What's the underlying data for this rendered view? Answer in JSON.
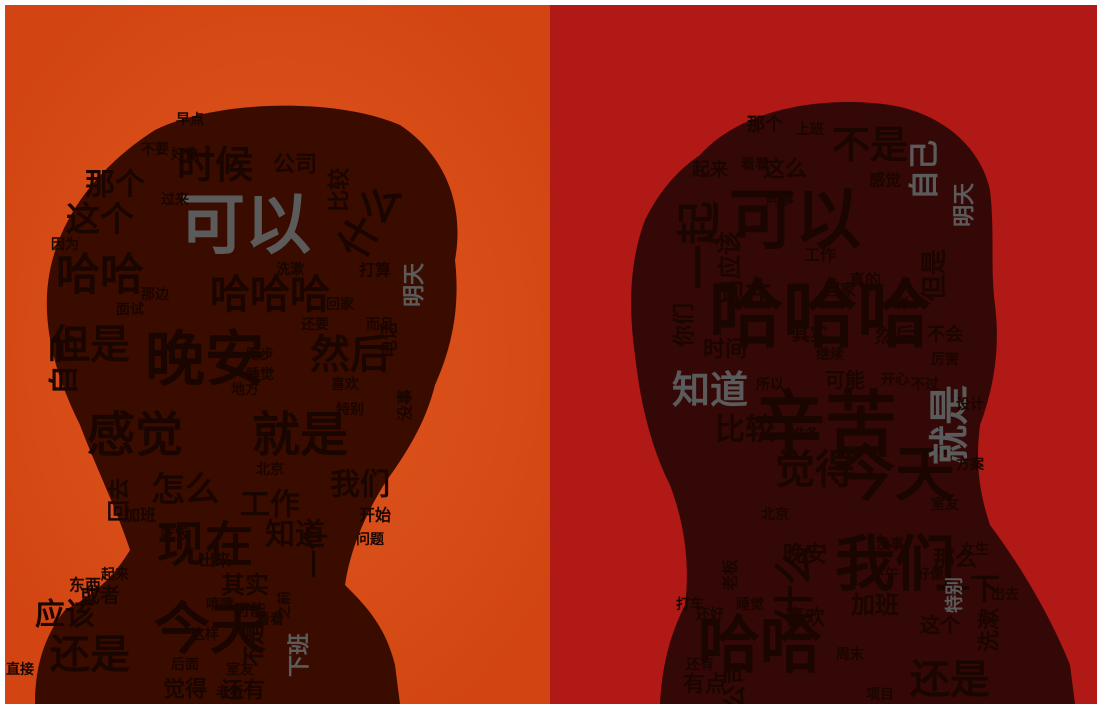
{
  "colors": {
    "left_bg": "#d64a17",
    "right_bg": "#b01915",
    "silhouette_left": "#3a0c00",
    "silhouette_right": "#340806",
    "word_dark": "#1a0500",
    "word_gray": "#5b5b5b"
  },
  "left_cloud": {
    "words": [
      {
        "text": "可以"
      },
      {
        "text": "时候"
      },
      {
        "text": "晚安"
      },
      {
        "text": "感觉"
      },
      {
        "text": "就是"
      },
      {
        "text": "现在"
      },
      {
        "text": "今天"
      },
      {
        "text": "哈哈"
      },
      {
        "text": "哈哈哈"
      },
      {
        "text": "但是"
      },
      {
        "text": "然后"
      },
      {
        "text": "这个"
      },
      {
        "text": "那个"
      },
      {
        "text": "什么"
      },
      {
        "text": "还是"
      },
      {
        "text": "应该"
      },
      {
        "text": "怎么"
      },
      {
        "text": "工作"
      },
      {
        "text": "知道"
      },
      {
        "text": "我们"
      },
      {
        "text": "一个"
      },
      {
        "text": "公司"
      },
      {
        "text": "比较"
      },
      {
        "text": "明天"
      },
      {
        "text": "自己"
      },
      {
        "text": "觉得"
      },
      {
        "text": "还有"
      },
      {
        "text": "或者"
      },
      {
        "text": "其实"
      },
      {
        "text": "不是"
      },
      {
        "text": "回去"
      },
      {
        "text": "下班"
      },
      {
        "text": "东西"
      },
      {
        "text": "出来"
      },
      {
        "text": "可能"
      },
      {
        "text": "起来"
      },
      {
        "text": "问题"
      },
      {
        "text": "吃饭"
      },
      {
        "text": "开始"
      },
      {
        "text": "没事"
      },
      {
        "text": "电话"
      },
      {
        "text": "喜欢"
      },
      {
        "text": "打算"
      },
      {
        "text": "睡觉"
      },
      {
        "text": "特别"
      },
      {
        "text": "地方"
      },
      {
        "text": "北京"
      },
      {
        "text": "老板"
      },
      {
        "text": "面试"
      },
      {
        "text": "早点"
      },
      {
        "text": "过来"
      },
      {
        "text": "加班"
      },
      {
        "text": "后面"
      },
      {
        "text": "这样"
      },
      {
        "text": "室友"
      },
      {
        "text": "看看"
      },
      {
        "text": "嘻嘻"
      },
      {
        "text": "之前"
      },
      {
        "text": "好像"
      },
      {
        "text": "洗漱"
      },
      {
        "text": "回家"
      },
      {
        "text": "而且"
      },
      {
        "text": "跑步"
      },
      {
        "text": "还要"
      },
      {
        "text": "直接"
      },
      {
        "text": "不要"
      },
      {
        "text": "因为"
      },
      {
        "text": "那边"
      }
    ]
  },
  "right_cloud": {
    "words": [
      {
        "text": "可以"
      },
      {
        "text": "哈哈哈"
      },
      {
        "text": "辛苦"
      },
      {
        "text": "今天"
      },
      {
        "text": "我们"
      },
      {
        "text": "哈哈"
      },
      {
        "text": "觉得"
      },
      {
        "text": "知道"
      },
      {
        "text": "就是"
      },
      {
        "text": "一起"
      },
      {
        "text": "不是"
      },
      {
        "text": "什么"
      },
      {
        "text": "还是"
      },
      {
        "text": "比较"
      },
      {
        "text": "自己"
      },
      {
        "text": "现在"
      },
      {
        "text": "但是"
      },
      {
        "text": "这么"
      },
      {
        "text": "时间"
      },
      {
        "text": "你们"
      },
      {
        "text": "应该"
      },
      {
        "text": "可能"
      },
      {
        "text": "然后"
      },
      {
        "text": "一下"
      },
      {
        "text": "那么"
      },
      {
        "text": "晚安"
      },
      {
        "text": "加班"
      },
      {
        "text": "公司"
      },
      {
        "text": "有点"
      },
      {
        "text": "喜欢"
      },
      {
        "text": "这个"
      },
      {
        "text": "洗漱"
      },
      {
        "text": "特别"
      },
      {
        "text": "明天"
      },
      {
        "text": "起来"
      },
      {
        "text": "那个"
      },
      {
        "text": "其实"
      },
      {
        "text": "不会"
      },
      {
        "text": "真的"
      },
      {
        "text": "工作"
      },
      {
        "text": "回家"
      },
      {
        "text": "感觉"
      },
      {
        "text": "出去"
      },
      {
        "text": "好像"
      },
      {
        "text": "老板"
      },
      {
        "text": "还有"
      },
      {
        "text": "睡觉"
      },
      {
        "text": "北京"
      },
      {
        "text": "项目"
      },
      {
        "text": "周末"
      },
      {
        "text": "下午"
      },
      {
        "text": "开心"
      },
      {
        "text": "继续"
      },
      {
        "text": "所以"
      },
      {
        "text": "准备"
      },
      {
        "text": "厉害"
      },
      {
        "text": "不过"
      },
      {
        "text": "女生"
      },
      {
        "text": "室友"
      },
      {
        "text": "方案"
      },
      {
        "text": "打车"
      },
      {
        "text": "还好"
      },
      {
        "text": "没事"
      },
      {
        "text": "设计"
      },
      {
        "text": "看看"
      },
      {
        "text": "上班"
      },
      {
        "text": "同事"
      },
      {
        "text": "一样"
      }
    ]
  }
}
